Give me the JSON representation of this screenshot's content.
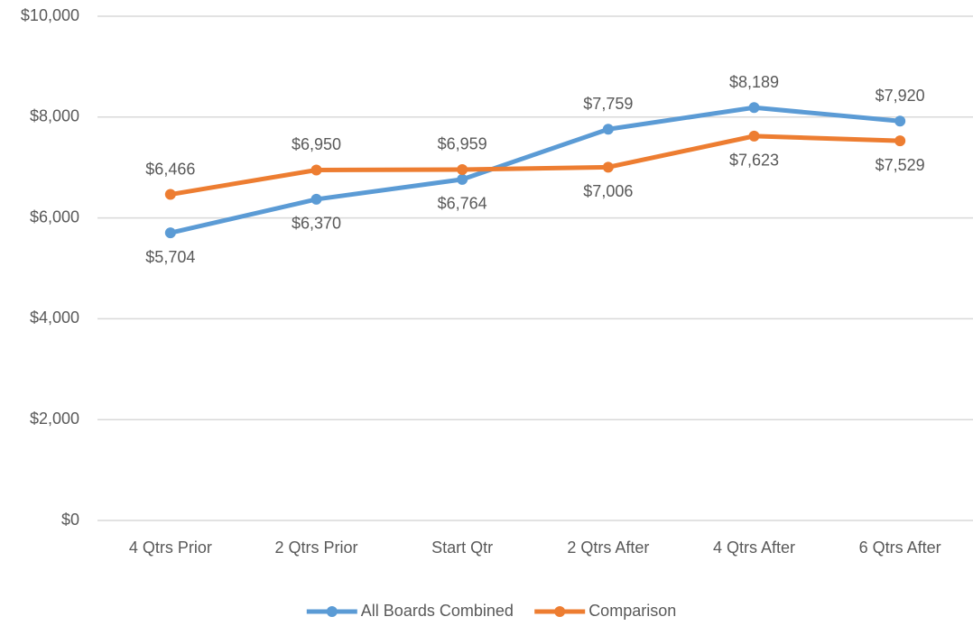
{
  "chart_data": {
    "type": "line",
    "categories": [
      "4 Qtrs Prior",
      "2 Qtrs Prior",
      "Start Qtr",
      "2 Qtrs After",
      "4 Qtrs After",
      "6 Qtrs After"
    ],
    "series": [
      {
        "name": "All Boards Combined",
        "color": "#5b9bd5",
        "values": [
          5704,
          6370,
          6764,
          7759,
          8189,
          7920
        ],
        "value_labels": [
          "$5,704",
          "$6,370",
          "$6,764",
          "$7,759",
          "$8,189",
          "$7,920"
        ]
      },
      {
        "name": "Comparison",
        "color": "#ed7d31",
        "values": [
          6466,
          6950,
          6959,
          7006,
          7623,
          7529
        ],
        "value_labels": [
          "$6,466",
          "$6,950",
          "$6,959",
          "$7,006",
          "$7,623",
          "$7,529"
        ]
      }
    ],
    "ylim": [
      0,
      10000
    ],
    "yticks": [
      {
        "value": 0,
        "label": "$0"
      },
      {
        "value": 2000,
        "label": "$2,000"
      },
      {
        "value": 4000,
        "label": "$4,000"
      },
      {
        "value": 6000,
        "label": "$6,000"
      },
      {
        "value": 8000,
        "label": "$8,000"
      },
      {
        "value": 10000,
        "label": "$10,000"
      }
    ],
    "grid": true,
    "legend": "bottom"
  }
}
